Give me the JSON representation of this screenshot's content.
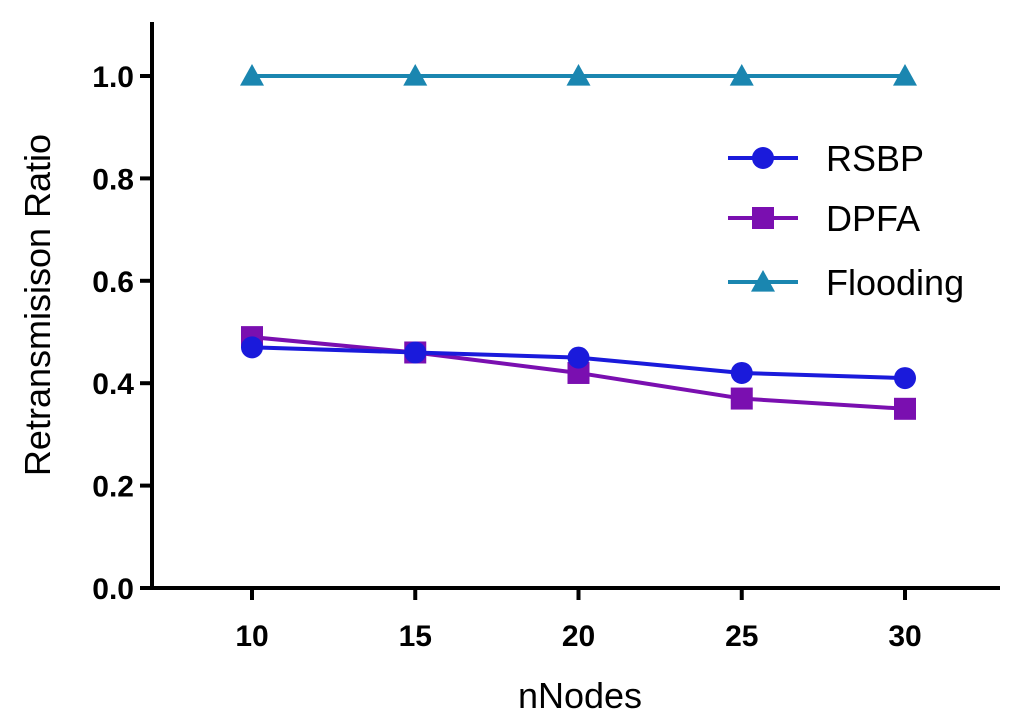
{
  "chart_data": {
    "type": "line",
    "title": "",
    "xlabel": "nNodes",
    "ylabel": "Retransmisison Ratio",
    "x": [
      10,
      15,
      20,
      25,
      30
    ],
    "x_tick_labels": [
      "10",
      "15",
      "20",
      "25",
      "30"
    ],
    "y_ticks": [
      0.0,
      0.2,
      0.4,
      0.6,
      0.8,
      1.0
    ],
    "y_tick_labels": [
      "0.0",
      "0.2",
      "0.4",
      "0.6",
      "0.8",
      "1.0"
    ],
    "ylim": [
      0,
      1.1
    ],
    "grid": false,
    "legend_position": "right",
    "series": [
      {
        "name": "RSBP",
        "values": [
          0.47,
          0.46,
          0.45,
          0.42,
          0.41
        ],
        "color": "#1a1adb",
        "marker": "circle"
      },
      {
        "name": "DPFA",
        "values": [
          0.49,
          0.46,
          0.42,
          0.37,
          0.35
        ],
        "color": "#7a0fb0",
        "marker": "square"
      },
      {
        "name": "Flooding",
        "values": [
          1.0,
          1.0,
          1.0,
          1.0,
          1.0
        ],
        "color": "#1a86b0",
        "marker": "triangle"
      }
    ]
  }
}
